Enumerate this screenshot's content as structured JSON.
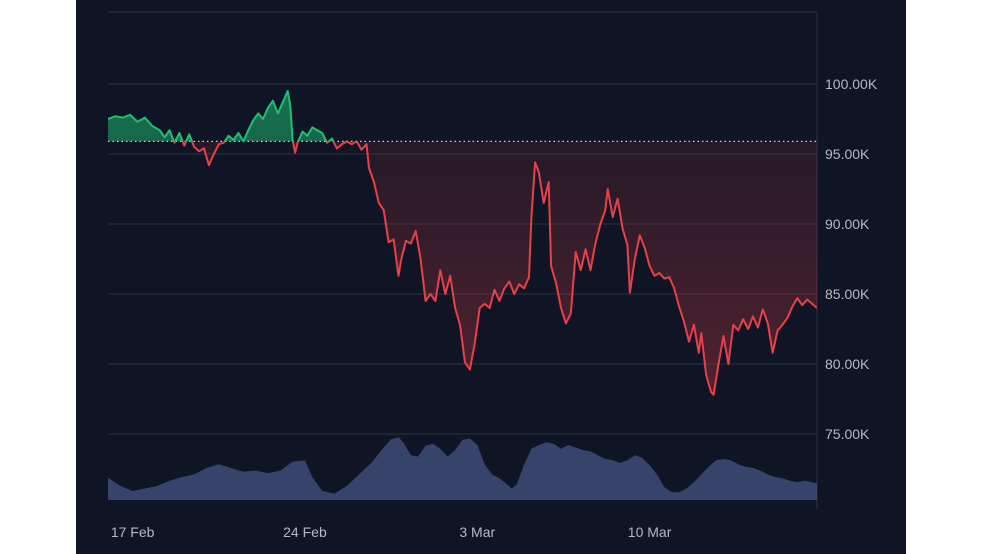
{
  "colors": {
    "background": "#0f1524",
    "grid": "#2a3244",
    "axis_text": "#b4b9c4",
    "baseline": "#c8ccd4",
    "up": "#1fbf75",
    "down": "#e8404a",
    "volume": "#3a4670"
  },
  "chart_data": {
    "type": "area",
    "title": "",
    "xlabel": "",
    "ylabel": "",
    "ylim": [
      70000,
      105000
    ],
    "y_ticks": [
      {
        "value": 100000,
        "label": "100.00K"
      },
      {
        "value": 95000,
        "label": "95.00K"
      },
      {
        "value": 90000,
        "label": "90.00K"
      },
      {
        "value": 85000,
        "label": "85.00K"
      },
      {
        "value": 80000,
        "label": "80.00K"
      },
      {
        "value": 75000,
        "label": "75.00K"
      }
    ],
    "x_range": [
      14.0,
      42.8
    ],
    "x_ticks": [
      {
        "value": 15,
        "label": "17 Feb"
      },
      {
        "value": 22,
        "label": "24 Feb"
      },
      {
        "value": 29,
        "label": "3 Mar"
      },
      {
        "value": 36,
        "label": "10 Mar"
      }
    ],
    "baseline_value": 95900,
    "grid": true,
    "series": [
      {
        "values": [
          [
            14.0,
            97500
          ],
          [
            14.3,
            97700
          ],
          [
            14.6,
            97600
          ],
          [
            14.9,
            97800
          ],
          [
            15.2,
            97300
          ],
          [
            15.5,
            97600
          ],
          [
            15.8,
            97000
          ],
          [
            16.1,
            96700
          ],
          [
            16.3,
            96200
          ],
          [
            16.5,
            96700
          ],
          [
            16.7,
            95800
          ],
          [
            16.9,
            96500
          ],
          [
            17.1,
            95600
          ],
          [
            17.3,
            96400
          ],
          [
            17.5,
            95500
          ],
          [
            17.7,
            95200
          ],
          [
            17.9,
            95400
          ],
          [
            18.1,
            94200
          ],
          [
            18.3,
            95000
          ],
          [
            18.5,
            95700
          ],
          [
            18.7,
            95800
          ],
          [
            18.9,
            96300
          ],
          [
            19.1,
            96000
          ],
          [
            19.3,
            96500
          ],
          [
            19.5,
            95900
          ],
          [
            19.7,
            96700
          ],
          [
            19.9,
            97400
          ],
          [
            20.1,
            97900
          ],
          [
            20.3,
            97500
          ],
          [
            20.5,
            98300
          ],
          [
            20.7,
            98800
          ],
          [
            20.9,
            97900
          ],
          [
            21.1,
            98700
          ],
          [
            21.3,
            99500
          ],
          [
            21.4,
            98500
          ],
          [
            21.5,
            96000
          ],
          [
            21.6,
            95100
          ],
          [
            21.7,
            95800
          ],
          [
            21.9,
            96600
          ],
          [
            22.1,
            96300
          ],
          [
            22.3,
            96900
          ],
          [
            22.5,
            96700
          ],
          [
            22.7,
            96500
          ],
          [
            22.9,
            95800
          ],
          [
            23.1,
            96100
          ],
          [
            23.3,
            95400
          ],
          [
            23.5,
            95700
          ],
          [
            23.7,
            95900
          ],
          [
            23.9,
            95700
          ],
          [
            24.1,
            95900
          ],
          [
            24.3,
            95300
          ],
          [
            24.5,
            95700
          ],
          [
            24.6,
            94000
          ],
          [
            24.8,
            93000
          ],
          [
            25.0,
            91500
          ],
          [
            25.2,
            91000
          ],
          [
            25.4,
            88700
          ],
          [
            25.6,
            88900
          ],
          [
            25.8,
            86300
          ],
          [
            25.9,
            87400
          ],
          [
            26.1,
            88800
          ],
          [
            26.3,
            88600
          ],
          [
            26.5,
            89500
          ],
          [
            26.7,
            87500
          ],
          [
            26.9,
            84500
          ],
          [
            27.1,
            85000
          ],
          [
            27.3,
            84500
          ],
          [
            27.5,
            86700
          ],
          [
            27.7,
            85000
          ],
          [
            27.9,
            86300
          ],
          [
            28.1,
            84000
          ],
          [
            28.3,
            82800
          ],
          [
            28.5,
            80100
          ],
          [
            28.7,
            79600
          ],
          [
            28.9,
            81500
          ],
          [
            29.1,
            84000
          ],
          [
            29.3,
            84300
          ],
          [
            29.5,
            84000
          ],
          [
            29.7,
            85300
          ],
          [
            29.9,
            84500
          ],
          [
            30.1,
            85400
          ],
          [
            30.3,
            85900
          ],
          [
            30.5,
            85000
          ],
          [
            30.7,
            85700
          ],
          [
            30.9,
            85400
          ],
          [
            31.1,
            86200
          ],
          [
            31.2,
            90500
          ],
          [
            31.35,
            94400
          ],
          [
            31.5,
            93700
          ],
          [
            31.7,
            91500
          ],
          [
            31.9,
            93000
          ],
          [
            32.0,
            87000
          ],
          [
            32.2,
            85800
          ],
          [
            32.4,
            84000
          ],
          [
            32.6,
            82900
          ],
          [
            32.8,
            83600
          ],
          [
            33.0,
            88000
          ],
          [
            33.2,
            86700
          ],
          [
            33.4,
            88200
          ],
          [
            33.6,
            86700
          ],
          [
            33.8,
            88600
          ],
          [
            34.0,
            90000
          ],
          [
            34.2,
            91000
          ],
          [
            34.3,
            92500
          ],
          [
            34.5,
            90500
          ],
          [
            34.7,
            91800
          ],
          [
            34.9,
            89700
          ],
          [
            35.1,
            88500
          ],
          [
            35.2,
            85100
          ],
          [
            35.4,
            87500
          ],
          [
            35.6,
            89200
          ],
          [
            35.8,
            88300
          ],
          [
            36.0,
            87000
          ],
          [
            36.2,
            86300
          ],
          [
            36.4,
            86500
          ],
          [
            36.6,
            86100
          ],
          [
            36.8,
            86200
          ],
          [
            37.0,
            85400
          ],
          [
            37.2,
            84100
          ],
          [
            37.4,
            83000
          ],
          [
            37.6,
            81600
          ],
          [
            37.8,
            82800
          ],
          [
            38.0,
            80800
          ],
          [
            38.1,
            82200
          ],
          [
            38.3,
            79200
          ],
          [
            38.5,
            78000
          ],
          [
            38.6,
            77800
          ],
          [
            38.8,
            80000
          ],
          [
            39.0,
            82000
          ],
          [
            39.2,
            80000
          ],
          [
            39.4,
            82800
          ],
          [
            39.6,
            82400
          ],
          [
            39.8,
            83200
          ],
          [
            40.0,
            82500
          ],
          [
            40.2,
            83400
          ],
          [
            40.4,
            82600
          ],
          [
            40.6,
            83900
          ],
          [
            40.8,
            82900
          ],
          [
            41.0,
            80800
          ],
          [
            41.2,
            82400
          ],
          [
            41.4,
            82800
          ],
          [
            41.6,
            83300
          ],
          [
            41.8,
            84100
          ],
          [
            42.0,
            84700
          ],
          [
            42.2,
            84200
          ],
          [
            42.4,
            84600
          ],
          [
            42.6,
            84300
          ],
          [
            42.8,
            84000
          ]
        ]
      }
    ],
    "volume": [
      [
        14.0,
        0.35
      ],
      [
        14.5,
        0.22
      ],
      [
        15.0,
        0.14
      ],
      [
        15.5,
        0.18
      ],
      [
        16.0,
        0.22
      ],
      [
        16.5,
        0.3
      ],
      [
        17.0,
        0.36
      ],
      [
        17.5,
        0.4
      ],
      [
        18.0,
        0.5
      ],
      [
        18.5,
        0.56
      ],
      [
        19.0,
        0.5
      ],
      [
        19.5,
        0.44
      ],
      [
        20.0,
        0.46
      ],
      [
        20.5,
        0.42
      ],
      [
        21.0,
        0.46
      ],
      [
        21.5,
        0.6
      ],
      [
        22.0,
        0.62
      ],
      [
        22.3,
        0.36
      ],
      [
        22.7,
        0.14
      ],
      [
        23.2,
        0.1
      ],
      [
        23.7,
        0.22
      ],
      [
        24.2,
        0.4
      ],
      [
        24.7,
        0.58
      ],
      [
        25.2,
        0.82
      ],
      [
        25.5,
        0.95
      ],
      [
        25.8,
        0.98
      ],
      [
        26.0,
        0.9
      ],
      [
        26.3,
        0.7
      ],
      [
        26.6,
        0.68
      ],
      [
        26.9,
        0.85
      ],
      [
        27.2,
        0.88
      ],
      [
        27.5,
        0.8
      ],
      [
        27.8,
        0.68
      ],
      [
        28.1,
        0.78
      ],
      [
        28.4,
        0.94
      ],
      [
        28.7,
        0.96
      ],
      [
        29.0,
        0.86
      ],
      [
        29.3,
        0.56
      ],
      [
        29.6,
        0.4
      ],
      [
        29.9,
        0.34
      ],
      [
        30.1,
        0.28
      ],
      [
        30.4,
        0.18
      ],
      [
        30.6,
        0.24
      ],
      [
        30.9,
        0.55
      ],
      [
        31.2,
        0.8
      ],
      [
        31.5,
        0.86
      ],
      [
        31.8,
        0.9
      ],
      [
        32.1,
        0.88
      ],
      [
        32.4,
        0.8
      ],
      [
        32.7,
        0.86
      ],
      [
        33.0,
        0.82
      ],
      [
        33.3,
        0.78
      ],
      [
        33.6,
        0.76
      ],
      [
        33.9,
        0.7
      ],
      [
        34.2,
        0.64
      ],
      [
        34.5,
        0.62
      ],
      [
        34.8,
        0.58
      ],
      [
        35.1,
        0.62
      ],
      [
        35.4,
        0.7
      ],
      [
        35.7,
        0.66
      ],
      [
        36.0,
        0.54
      ],
      [
        36.3,
        0.4
      ],
      [
        36.6,
        0.2
      ],
      [
        36.9,
        0.12
      ],
      [
        37.2,
        0.12
      ],
      [
        37.5,
        0.18
      ],
      [
        37.8,
        0.28
      ],
      [
        38.1,
        0.4
      ],
      [
        38.4,
        0.52
      ],
      [
        38.7,
        0.62
      ],
      [
        39.0,
        0.64
      ],
      [
        39.3,
        0.62
      ],
      [
        39.6,
        0.56
      ],
      [
        39.9,
        0.52
      ],
      [
        40.2,
        0.5
      ],
      [
        40.5,
        0.46
      ],
      [
        40.8,
        0.4
      ],
      [
        41.1,
        0.36
      ],
      [
        41.4,
        0.34
      ],
      [
        41.7,
        0.3
      ],
      [
        42.0,
        0.28
      ],
      [
        42.3,
        0.3
      ],
      [
        42.6,
        0.28
      ],
      [
        42.8,
        0.26
      ]
    ]
  }
}
